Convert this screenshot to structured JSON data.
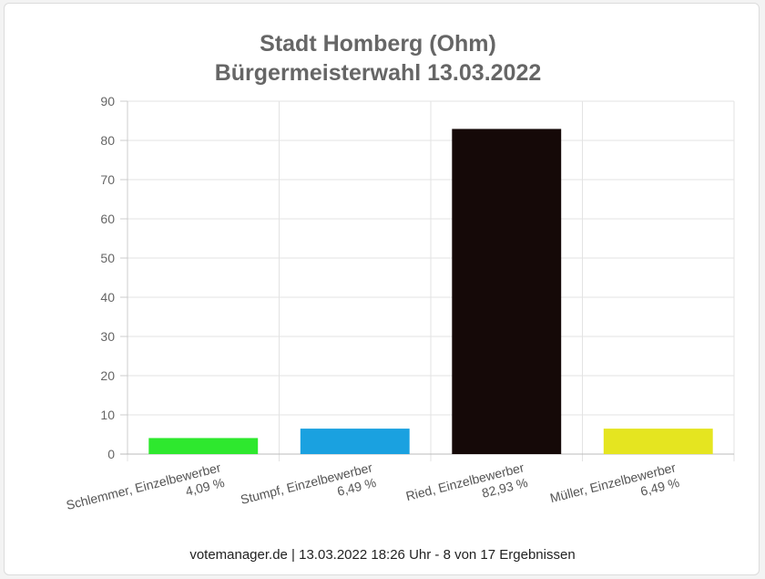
{
  "title_lines": [
    "Stadt Homberg (Ohm)",
    "Bürgermeisterwahl 13.03.2022"
  ],
  "footer": "votemanager.de | 13.03.2022 18:26 Uhr - 8 von 17 Ergebnissen",
  "chart_data": {
    "type": "bar",
    "title": "Stadt Homberg (Ohm) Bürgermeisterwahl 13.03.2022",
    "categories": [
      "Schlemmer, Einzelbewerber",
      "Stumpf, Einzelbewerber",
      "Ried, Einzelbewerber",
      "Müller, Einzelbewerber"
    ],
    "value_labels": [
      "4,09 %",
      "6,49 %",
      "82,93 %",
      "6,49 %"
    ],
    "values": [
      4.09,
      6.49,
      82.93,
      6.49
    ],
    "colors": [
      "#2ee82e",
      "#1aa1e0",
      "#150908",
      "#e5e520"
    ],
    "ylim": [
      0,
      90
    ],
    "yticks": [
      0,
      10,
      20,
      30,
      40,
      50,
      60,
      70,
      80,
      90
    ],
    "grid": true,
    "xlabel": "",
    "ylabel": ""
  }
}
